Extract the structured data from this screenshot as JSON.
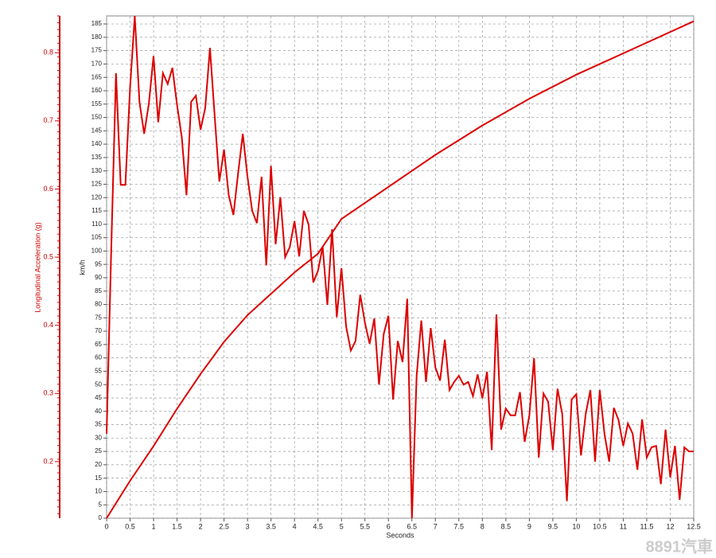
{
  "chart_data": {
    "type": "line",
    "xlabel": "Seconds",
    "ylabel": "km/h",
    "y2label": "Longitudinal Acceleration (g)",
    "watermark": "8891汽車",
    "xlim": [
      0,
      12.5
    ],
    "ylim": [
      0,
      188
    ],
    "y2lim": [
      0.117,
      0.854
    ],
    "xticks": [
      0,
      0.5,
      1,
      1.5,
      2,
      2.5,
      3,
      3.5,
      4,
      4.5,
      5,
      5.5,
      6,
      6.5,
      7,
      7.5,
      8,
      8.5,
      9,
      9.5,
      10,
      10.5,
      11,
      11.5,
      12,
      12.5
    ],
    "yticks": [
      0,
      5,
      10,
      15,
      20,
      25,
      30,
      35,
      40,
      45,
      50,
      55,
      60,
      65,
      70,
      75,
      80,
      85,
      90,
      95,
      100,
      105,
      110,
      115,
      120,
      125,
      130,
      135,
      140,
      145,
      150,
      155,
      160,
      165,
      170,
      175,
      180,
      185
    ],
    "y2ticks": [
      0.2,
      0.3,
      0.4,
      0.5,
      0.6,
      0.7,
      0.8
    ],
    "grid": true,
    "series": [
      {
        "color": "#dd0000",
        "x": [
          0,
          0.5,
          1,
          1.5,
          2,
          2.5,
          3,
          3.5,
          4,
          4.5,
          5,
          6,
          7,
          8,
          9,
          10,
          11,
          12,
          12.5
        ],
        "values": [
          0,
          14,
          27,
          41,
          54,
          66,
          76,
          84,
          92,
          99,
          112,
          124,
          136,
          147,
          157,
          166,
          174,
          182,
          186
        ]
      },
      {
        "color": "#dd0000",
        "axis": "y2",
        "x": [
          0,
          0.1,
          0.2,
          0.3,
          0.4,
          0.5,
          0.6,
          0.7,
          0.8,
          0.9,
          1,
          1.1,
          1.2,
          1.3,
          1.4,
          1.5,
          1.6,
          1.7,
          1.8,
          1.9,
          2,
          2.1,
          2.2,
          2.3,
          2.4,
          2.5,
          2.6,
          2.7,
          2.8,
          2.9,
          3,
          3.1,
          3.2,
          3.3,
          3.4,
          3.5,
          3.6,
          3.7,
          3.8,
          3.9,
          4,
          4.1,
          4.2,
          4.3,
          4.4,
          4.5,
          4.6,
          4.7,
          4.8,
          4.9,
          5,
          5.1,
          5.2,
          5.3,
          5.4,
          5.5,
          5.6,
          5.7,
          5.8,
          5.9,
          6,
          6.1,
          6.2,
          6.3,
          6.4,
          6.5,
          6.6,
          6.7,
          6.8,
          6.9,
          7,
          7.1,
          7.2,
          7.3,
          7.4,
          7.5,
          7.6,
          7.7,
          7.8,
          7.9,
          8,
          8.1,
          8.2,
          8.3,
          8.4,
          8.5,
          8.6,
          8.7,
          8.8,
          8.9,
          9,
          9.1,
          9.2,
          9.3,
          9.4,
          9.5,
          9.6,
          9.7,
          9.8,
          9.9,
          10,
          10.1,
          10.2,
          10.3,
          10.4,
          10.5,
          10.6,
          10.7,
          10.8,
          10.9,
          11,
          11.1,
          11.2,
          11.3,
          11.4,
          11.5,
          11.6,
          11.7,
          11.8,
          11.9,
          12,
          12.1,
          12.2,
          12.3,
          12.4,
          12.5
        ],
        "values": [
          0.241,
          0.515,
          0.77,
          0.606,
          0.606,
          0.749,
          0.854,
          0.728,
          0.681,
          0.725,
          0.795,
          0.698,
          0.77,
          0.754,
          0.778,
          0.723,
          0.676,
          0.591,
          0.728,
          0.737,
          0.687,
          0.719,
          0.807,
          0.708,
          0.611,
          0.658,
          0.591,
          0.562,
          0.623,
          0.681,
          0.618,
          0.568,
          0.55,
          0.618,
          0.488,
          0.634,
          0.519,
          0.588,
          0.5,
          0.515,
          0.553,
          0.501,
          0.568,
          0.548,
          0.463,
          0.48,
          0.515,
          0.43,
          0.541,
          0.412,
          0.484,
          0.398,
          0.363,
          0.377,
          0.445,
          0.404,
          0.373,
          0.41,
          0.313,
          0.387,
          0.414,
          0.291,
          0.377,
          0.346,
          0.439,
          0.117,
          0.326,
          0.407,
          0.317,
          0.396,
          0.338,
          0.319,
          0.379,
          0.305,
          0.317,
          0.326,
          0.313,
          0.317,
          0.296,
          0.328,
          0.293,
          0.332,
          0.217,
          0.416,
          0.247,
          0.278,
          0.268,
          0.268,
          0.302,
          0.229,
          0.268,
          0.352,
          0.206,
          0.3,
          0.288,
          0.217,
          0.307,
          0.27,
          0.142,
          0.291,
          0.299,
          0.209,
          0.27,
          0.305,
          0.2,
          0.305,
          0.241,
          0.2,
          0.279,
          0.261,
          0.223,
          0.256,
          0.241,
          0.188,
          0.262,
          0.206,
          0.221,
          0.223,
          0.167,
          0.247,
          0.177,
          0.223,
          0.144,
          0.221,
          0.215,
          0.215
        ]
      }
    ]
  }
}
